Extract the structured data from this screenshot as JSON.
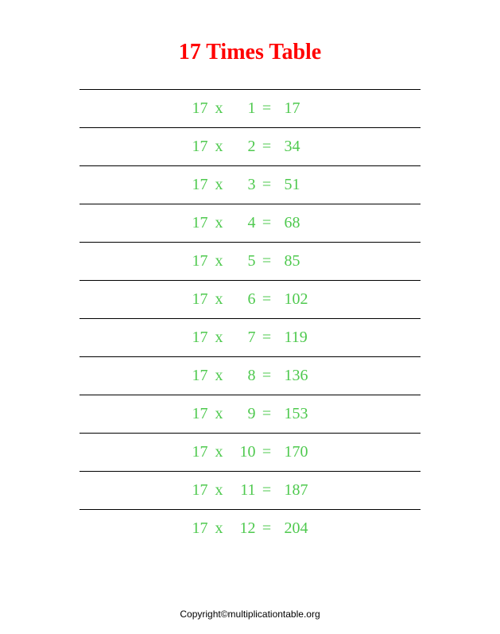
{
  "title": "17 Times Table",
  "title_color": "#ff0000",
  "text_color": "#4ec94e",
  "background_color": "#ffffff",
  "border_color": "#000000",
  "rows": [
    {
      "a": "17",
      "x": "x",
      "b": "1",
      "eq": "=",
      "r": "17"
    },
    {
      "a": "17",
      "x": "x",
      "b": "2",
      "eq": "=",
      "r": "34"
    },
    {
      "a": "17",
      "x": "x",
      "b": "3",
      "eq": "=",
      "r": "51"
    },
    {
      "a": "17",
      "x": "x",
      "b": "4",
      "eq": "=",
      "r": "68"
    },
    {
      "a": "17",
      "x": "x",
      "b": "5",
      "eq": "=",
      "r": "85"
    },
    {
      "a": "17",
      "x": "x",
      "b": "6",
      "eq": "=",
      "r": "102"
    },
    {
      "a": "17",
      "x": "x",
      "b": "7",
      "eq": "=",
      "r": "119"
    },
    {
      "a": "17",
      "x": "x",
      "b": "8",
      "eq": "=",
      "r": "136"
    },
    {
      "a": "17",
      "x": "x",
      "b": "9",
      "eq": "=",
      "r": "153"
    },
    {
      "a": "17",
      "x": "x",
      "b": "10",
      "eq": "=",
      "r": "170"
    },
    {
      "a": "17",
      "x": "x",
      "b": "11",
      "eq": "=",
      "r": "187"
    },
    {
      "a": "17",
      "x": "x",
      "b": "12",
      "eq": "=",
      "r": "204"
    }
  ],
  "copyright": "Copyright©multiplicationtable.org"
}
